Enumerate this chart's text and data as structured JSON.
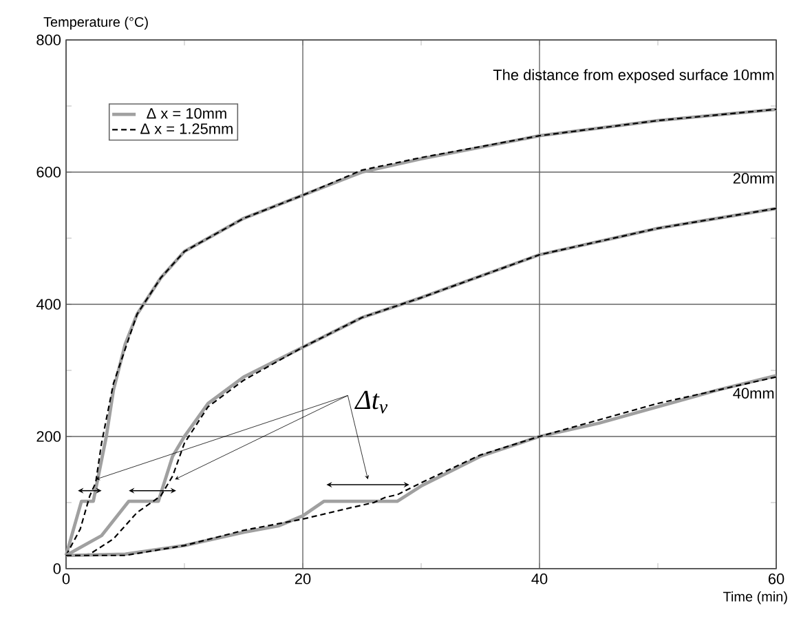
{
  "chart_data": {
    "type": "line",
    "xlabel": "Time (min)",
    "ylabel": "Temperature (°C)",
    "xlim": [
      0,
      60
    ],
    "ylim": [
      0,
      800
    ],
    "xticks": [
      0,
      {
        "value": 10,
        "label": null
      },
      20,
      {
        "value": 30,
        "label": null
      },
      40,
      {
        "value": 50,
        "label": null
      },
      60
    ],
    "yticks": [
      0,
      {
        "value": 100,
        "label": null
      },
      200,
      {
        "value": 300,
        "label": null
      },
      400,
      {
        "value": 500,
        "label": null
      },
      600,
      {
        "value": 700,
        "label": null
      },
      800
    ],
    "grid": true,
    "legend": "top left",
    "marker": "none",
    "series": [
      {
        "name": "Δ x = 10mm",
        "color": "#a0a0a0",
        "line_style": "solid",
        "x": [
          0,
          1.3,
          2.3,
          3.4,
          4,
          5,
          6,
          8,
          10,
          15,
          20,
          25,
          30,
          40,
          50,
          60
        ],
        "values": [
          20,
          102,
          102,
          200,
          270,
          340,
          385,
          440,
          480,
          530,
          565,
          600,
          620,
          655,
          678,
          695
        ]
      },
      {
        "name": "Δ x = 1.25mm",
        "color": "#000000",
        "line_style": "dashed",
        "x": [
          0,
          1.2,
          2,
          2.5,
          3,
          4,
          6,
          8,
          10,
          15,
          20,
          25,
          30,
          40,
          50,
          60
        ],
        "values": [
          20,
          60,
          110,
          130,
          190,
          280,
          385,
          440,
          480,
          530,
          565,
          603,
          622,
          655,
          678,
          695
        ]
      },
      {
        "color": "#a0a0a0",
        "line_style": "solid",
        "x": [
          0,
          1,
          3,
          5.3,
          7.8,
          9,
          10,
          12,
          15,
          20,
          25,
          30,
          40,
          50,
          60
        ],
        "values": [
          20,
          30,
          50,
          102,
          102,
          170,
          200,
          250,
          290,
          335,
          380,
          410,
          475,
          515,
          545
        ]
      },
      {
        "color": "#000000",
        "line_style": "dashed",
        "x": [
          0,
          2,
          4,
          6,
          8,
          9,
          10,
          12,
          15,
          20,
          25,
          30,
          40,
          50,
          60
        ],
        "values": [
          20,
          22,
          45,
          85,
          110,
          140,
          190,
          245,
          285,
          335,
          380,
          410,
          475,
          515,
          545
        ]
      },
      {
        "color": "#a0a0a0",
        "line_style": "solid",
        "x": [
          0,
          5,
          10,
          15,
          18,
          20,
          21.8,
          28,
          30,
          35,
          40,
          45,
          50,
          55,
          60
        ],
        "values": [
          20,
          22,
          35,
          55,
          65,
          80,
          102,
          102,
          125,
          170,
          200,
          220,
          245,
          270,
          292
        ]
      },
      {
        "color": "#000000",
        "line_style": "dashed",
        "x": [
          0,
          5,
          10,
          15,
          20,
          24,
          26,
          27,
          28,
          30,
          35,
          40,
          45,
          50,
          60
        ],
        "values": [
          20,
          20,
          35,
          58,
          75,
          92,
          100,
          108,
          112,
          130,
          172,
          200,
          225,
          250,
          290
        ]
      }
    ],
    "annotations": [
      "The distance from exposed surface 10mm",
      "20mm",
      "40mm",
      {
        "text": "Δt$_{v}$",
        "x": 2.5,
        "y": 135
      }
    ]
  }
}
